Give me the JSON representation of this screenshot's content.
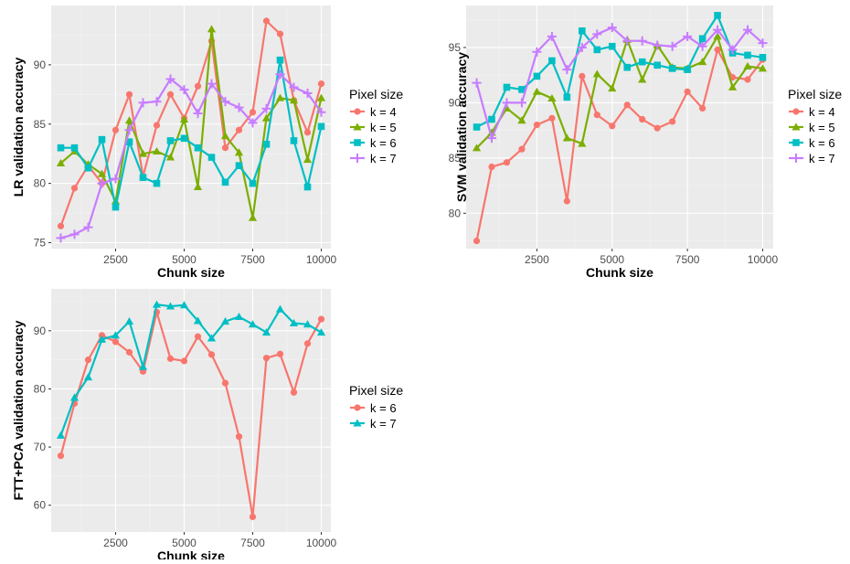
{
  "colors": {
    "panel_bg": "#ebebeb",
    "grid_major": "#ffffff",
    "grid_minor": "#f4f4f4",
    "k4": "#f8766d",
    "k5": "#7cae00",
    "k6": "#00bfc4",
    "k7": "#c77cff",
    "fft_k6": "#f8766d",
    "fft_k7": "#00bfc4"
  },
  "chart_data": [
    {
      "type": "line",
      "id": "lr",
      "xlabel": "Chunk size",
      "ylabel": "LR validation accuracy",
      "xlim": [
        150,
        10350
      ],
      "ylim": [
        74.5,
        95
      ],
      "xticks": [
        2500,
        5000,
        7500,
        10000
      ],
      "xtick_labels": [
        "2500",
        "5000",
        "7500",
        "10000"
      ],
      "yticks": [
        75,
        80,
        85,
        90
      ],
      "ytick_labels": [
        "75",
        "80",
        "85",
        "90"
      ],
      "legend_title": "Pixel size",
      "legend_position": "right",
      "grid": true,
      "x": [
        500,
        1000,
        1500,
        2000,
        2500,
        3000,
        3500,
        4000,
        4500,
        5000,
        5500,
        6000,
        6500,
        7000,
        7500,
        8000,
        8500,
        9000,
        9500,
        10000
      ],
      "series": [
        {
          "name": "k = 4",
          "color_key": "k4",
          "shape": "circle",
          "values": [
            76.4,
            79.6,
            81.5,
            80.0,
            84.5,
            87.5,
            80.6,
            84.9,
            87.5,
            85.5,
            88.2,
            92.0,
            83.0,
            84.5,
            86.0,
            93.7,
            92.6,
            87.0,
            84.3,
            88.4
          ]
        },
        {
          "name": "k = 5",
          "color_key": "k5",
          "shape": "triangle",
          "values": [
            81.7,
            82.7,
            81.6,
            80.8,
            78.5,
            85.3,
            82.5,
            82.7,
            82.2,
            85.4,
            79.7,
            93.0,
            84.0,
            82.6,
            77.1,
            85.5,
            87.2,
            87.0,
            82.0,
            87.2
          ]
        },
        {
          "name": "k = 6",
          "color_key": "k6",
          "shape": "square",
          "values": [
            83.0,
            83.0,
            81.3,
            83.7,
            78.0,
            83.5,
            80.5,
            80.0,
            83.6,
            83.8,
            83.0,
            82.2,
            80.1,
            81.5,
            80.0,
            83.3,
            90.4,
            83.6,
            79.7,
            84.8
          ]
        },
        {
          "name": "k = 7",
          "color_key": "k7",
          "shape": "cross",
          "values": [
            75.4,
            75.7,
            76.3,
            80.0,
            80.4,
            84.5,
            86.8,
            86.9,
            88.8,
            87.9,
            85.9,
            88.4,
            86.9,
            86.4,
            85.1,
            86.3,
            89.2,
            88.1,
            87.6,
            86.0
          ]
        }
      ]
    },
    {
      "type": "line",
      "id": "svm",
      "xlabel": "Chunk size",
      "ylabel": "SVM validation accuracy",
      "xlim": [
        150,
        10350
      ],
      "ylim": [
        76.8,
        98.8
      ],
      "xticks": [
        2500,
        5000,
        7500,
        10000
      ],
      "xtick_labels": [
        "2500",
        "5000",
        "7500",
        "10000"
      ],
      "yticks": [
        80,
        85,
        90,
        95
      ],
      "ytick_labels": [
        "80",
        "85",
        "90",
        "95"
      ],
      "legend_title": "Pixel size",
      "legend_position": "right",
      "grid": true,
      "x": [
        500,
        1000,
        1500,
        2000,
        2500,
        3000,
        3500,
        4000,
        4500,
        5000,
        5500,
        6000,
        6500,
        7000,
        7500,
        8000,
        8500,
        9000,
        9500,
        10000
      ],
      "series": [
        {
          "name": "k = 4",
          "color_key": "k4",
          "shape": "circle",
          "values": [
            77.5,
            84.2,
            84.6,
            85.8,
            88.0,
            88.6,
            81.1,
            92.4,
            88.9,
            87.9,
            89.8,
            88.5,
            87.7,
            88.3,
            91.0,
            89.5,
            94.8,
            92.3,
            92.1,
            93.9
          ]
        },
        {
          "name": "k = 5",
          "color_key": "k5",
          "shape": "triangle",
          "values": [
            85.9,
            87.3,
            89.5,
            88.4,
            91.0,
            90.4,
            86.8,
            86.3,
            92.6,
            91.3,
            95.7,
            92.1,
            95.2,
            93.2,
            93.1,
            93.7,
            96.0,
            91.4,
            93.3,
            93.1
          ]
        },
        {
          "name": "k = 6",
          "color_key": "k6",
          "shape": "square",
          "values": [
            87.8,
            88.5,
            91.4,
            91.2,
            92.4,
            93.8,
            90.5,
            96.5,
            94.8,
            95.1,
            93.2,
            93.7,
            93.4,
            93.1,
            93.0,
            95.8,
            97.9,
            94.5,
            94.3,
            94.1
          ]
        },
        {
          "name": "k = 7",
          "color_key": "k7",
          "shape": "cross",
          "values": [
            91.8,
            86.8,
            90.0,
            90.0,
            94.6,
            96.0,
            93.0,
            95.0,
            96.2,
            96.8,
            95.6,
            95.6,
            95.2,
            95.1,
            96.0,
            95.1,
            96.6,
            94.8,
            96.6,
            95.4
          ]
        }
      ]
    },
    {
      "type": "line",
      "id": "fft",
      "xlabel": "Chunk size",
      "ylabel": "FTT+PCA validation accuracy",
      "xlim": [
        150,
        10350
      ],
      "ylim": [
        55.4,
        97.2
      ],
      "xticks": [
        2500,
        5000,
        7500,
        10000
      ],
      "xtick_labels": [
        "2500",
        "5000",
        "7500",
        "10000"
      ],
      "yticks": [
        60,
        70,
        80,
        90
      ],
      "ytick_labels": [
        "60",
        "70",
        "80",
        "90"
      ],
      "legend_title": "Pixel size",
      "legend_position": "right",
      "grid": true,
      "x": [
        500,
        1000,
        1500,
        2000,
        2500,
        3000,
        3500,
        4000,
        4500,
        5000,
        5500,
        6000,
        6500,
        7000,
        7500,
        8000,
        8500,
        9000,
        9500,
        10000
      ],
      "series": [
        {
          "name": "k = 6",
          "color_key": "fft_k6",
          "shape": "circle",
          "values": [
            68.5,
            77.5,
            85.0,
            89.2,
            88.1,
            86.3,
            83.0,
            93.2,
            85.2,
            84.8,
            89.0,
            85.9,
            81.0,
            71.8,
            58.0,
            85.3,
            86.0,
            79.4,
            87.8,
            92.0
          ]
        },
        {
          "name": "k = 7",
          "color_key": "fft_k7",
          "shape": "triangle",
          "values": [
            72.0,
            78.5,
            82.0,
            88.5,
            89.2,
            91.6,
            83.8,
            94.5,
            94.2,
            94.4,
            91.7,
            88.7,
            91.6,
            92.4,
            91.1,
            89.7,
            93.7,
            91.3,
            91.1,
            89.7
          ]
        }
      ]
    }
  ]
}
